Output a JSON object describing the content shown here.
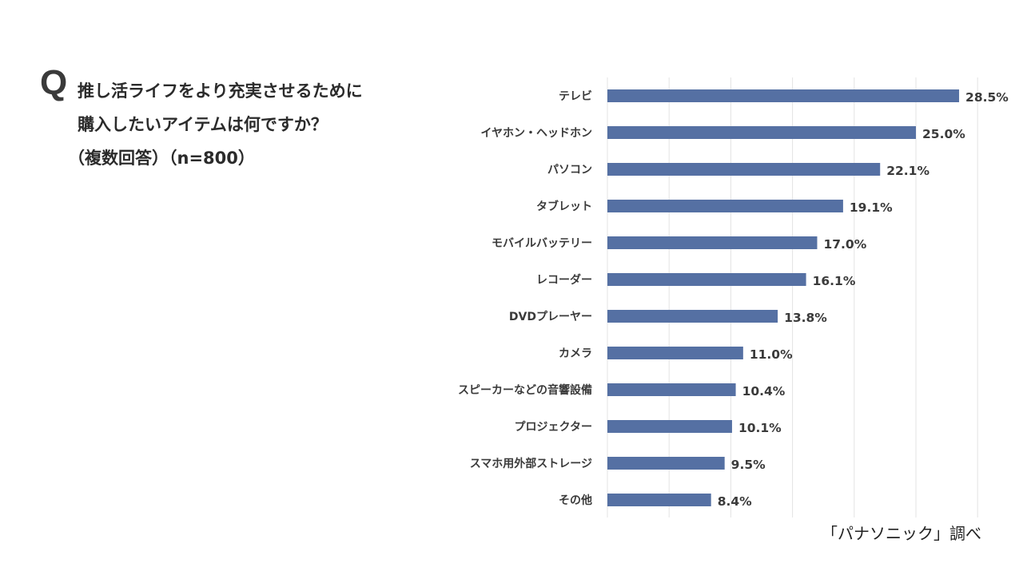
{
  "question": {
    "mark": "Q",
    "lines": [
      "推し活ライフをより充実させるために",
      "購入したいアイテムは何ですか？",
      "（複数回答）（n=800）"
    ]
  },
  "source": "「パナソニック」調べ",
  "colors": {
    "bar": "#5570a3",
    "grid": "#e3e3e3",
    "text": "#333333"
  },
  "chart_data": {
    "type": "bar",
    "orientation": "horizontal",
    "title": "推し活ライフをより充実させるために購入したいアイテムは何ですか？（複数回答）（n=800）",
    "categories": [
      "テレビ",
      "イヤホン・ヘッドホン",
      "パソコン",
      "タブレット",
      "モバイルバッテリー",
      "レコーダー",
      "DVDプレーヤー",
      "カメラ",
      "スピーカーなどの音響設備",
      "プロジェクター",
      "スマホ用外部ストレージ",
      "その他"
    ],
    "values": [
      28.5,
      25.0,
      22.1,
      19.1,
      17.0,
      16.1,
      13.8,
      11.0,
      10.4,
      10.1,
      9.5,
      8.4
    ],
    "labels": [
      "28.5%",
      "25.0%",
      "22.1%",
      "19.1%",
      "17.0%",
      "16.1%",
      "13.8%",
      "11.0%",
      "10.4%",
      "10.1%",
      "9.5%",
      "8.4%"
    ],
    "unit": "%",
    "xlim": [
      0,
      30
    ],
    "grid": true
  }
}
